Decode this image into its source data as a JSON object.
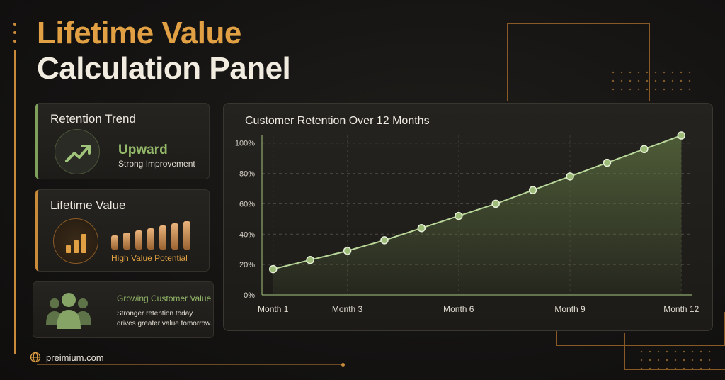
{
  "title": {
    "line1": "Lifetime Value",
    "line2": "Calculation Panel"
  },
  "cards": {
    "retention": {
      "heading": "Retention Trend",
      "value": "Upward",
      "subtitle": "Strong Improvement",
      "icon": "trend-up-icon"
    },
    "lifetime": {
      "heading": "Lifetime Value",
      "subtitle": "High Value Potential",
      "icon": "bar-chart-icon",
      "bar_levels": [
        0.5,
        0.6,
        0.68,
        0.76,
        0.84,
        0.92,
        1.0
      ]
    },
    "growing": {
      "heading": "Growing Customer Value",
      "text": "Stronger retention today drives greater value tomorrow.",
      "icon": "people-icon"
    }
  },
  "chart_data": {
    "type": "line",
    "title": "Customer Retention Over 12 Months",
    "x": [
      1,
      2,
      3,
      4,
      5,
      6,
      7,
      8,
      9,
      10,
      11,
      12
    ],
    "xticks": [
      {
        "x": 1,
        "label": "Month 1"
      },
      {
        "x": 3,
        "label": "Month 3"
      },
      {
        "x": 6,
        "label": "Month 6"
      },
      {
        "x": 9,
        "label": "Month 9"
      },
      {
        "x": 12,
        "label": "Month 12"
      }
    ],
    "series": [
      {
        "values": [
          17,
          23,
          29,
          36,
          44,
          52,
          60,
          69,
          78,
          87,
          96,
          105
        ]
      }
    ],
    "yticks": [
      0,
      20,
      40,
      60,
      80,
      100
    ],
    "ytick_suffix": "%",
    "ylim": [
      0,
      105
    ],
    "xlim": [
      0.7,
      12.3
    ],
    "grid": true,
    "area_fill": true,
    "colors": {
      "line": "#b9d79a",
      "point": "#9dbb78",
      "fill": "#5b6e3f",
      "grid": "#4d4a42"
    }
  },
  "footer": {
    "site": "preimium.com",
    "icon": "globe-icon"
  },
  "colors": {
    "accent": "#e0a043",
    "green": "#93b869"
  }
}
